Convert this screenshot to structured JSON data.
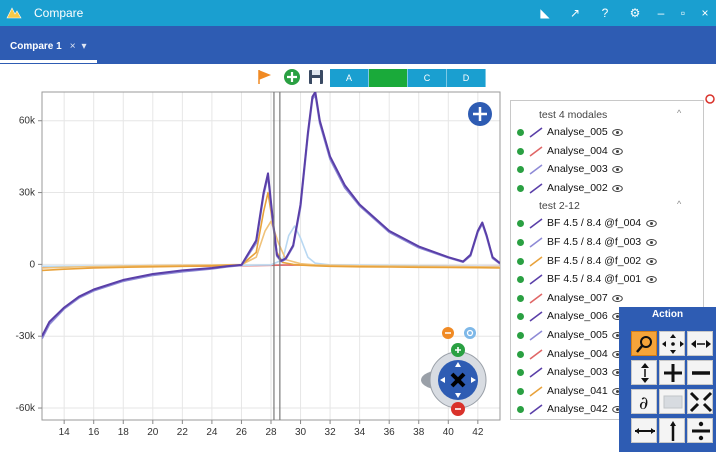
{
  "window": {
    "title": "Compare"
  },
  "tabs": [
    {
      "label": "Compare 1",
      "close": "×",
      "menu": "▾"
    }
  ],
  "titlebar_buttons": [
    "◣",
    "↗",
    "?",
    "⚙",
    "–",
    "▫",
    "×"
  ],
  "toolbar": {
    "segments": [
      {
        "label": "A",
        "active": false
      },
      {
        "label": "",
        "active": true
      },
      {
        "label": "C",
        "active": false
      },
      {
        "label": "D",
        "active": false
      }
    ]
  },
  "chart_data": {
    "type": "line",
    "x_ticks": [
      "14",
      "16",
      "18",
      "20",
      "22",
      "24",
      "26",
      "28",
      "30",
      "32",
      "34",
      "36",
      "38",
      "40",
      "42"
    ],
    "y_ticks": [
      "60k",
      "30k",
      "0",
      "-30k",
      "-60k"
    ],
    "xlim": [
      12.5,
      43.5
    ],
    "ylim": [
      -65000,
      72000
    ],
    "grid": true,
    "series": [
      {
        "color": "#5a3fa8",
        "x": [
          12.5,
          13,
          14,
          15,
          16,
          18,
          20,
          22,
          24,
          25,
          26,
          27,
          27.5,
          27.8,
          28.1,
          28.4,
          28.7,
          29,
          29.5,
          30,
          30.5,
          30.8,
          31,
          31.3,
          32,
          33,
          34,
          36,
          38,
          40,
          41,
          41.5,
          42,
          42.3,
          42.6,
          43,
          43.5
        ],
        "y": [
          -30000,
          -24000,
          -18000,
          -13500,
          -10500,
          -6500,
          -4000,
          -2500,
          -1500,
          -800,
          -200,
          10000,
          30000,
          38000,
          20000,
          4000,
          1500,
          2500,
          8000,
          25000,
          55000,
          70000,
          72000,
          60000,
          45000,
          33000,
          25000,
          14000,
          7500,
          3000,
          1200,
          4000,
          14000,
          17500,
          12000,
          3000,
          500
        ]
      },
      {
        "color": "#8e8ad6",
        "x": [
          12.5,
          13,
          14,
          15,
          16,
          18,
          20,
          22,
          24,
          25,
          26,
          27,
          27.5,
          27.8,
          28.1,
          28.4,
          28.7,
          29,
          29.5,
          30,
          30.5,
          30.8,
          31,
          31.3,
          32,
          33,
          34,
          36,
          38,
          40,
          41,
          41.5,
          42,
          42.3,
          42.6,
          43,
          43.5
        ],
        "y": [
          -31000,
          -25000,
          -18500,
          -14000,
          -11000,
          -7000,
          -4500,
          -3000,
          -1800,
          -1000,
          -400,
          9000,
          29000,
          37000,
          19000,
          3500,
          1200,
          2200,
          7500,
          24000,
          54000,
          69000,
          71000,
          59000,
          44000,
          32000,
          24500,
          13500,
          7000,
          2800,
          1000,
          3600,
          13500,
          17000,
          11500,
          2600,
          300
        ]
      },
      {
        "color": "#e8a23b",
        "x": [
          12.5,
          14,
          16,
          18,
          20,
          22,
          24,
          26,
          27,
          27.5,
          27.8,
          28.1,
          28.4,
          28.8,
          29.5,
          30,
          31,
          32,
          34,
          36,
          38,
          40,
          42,
          43.5
        ],
        "y": [
          -2500,
          -2000,
          -1500,
          -1200,
          -1000,
          -800,
          -600,
          -200,
          5000,
          22000,
          30000,
          18000,
          5000,
          800,
          0,
          -300,
          -600,
          -800,
          -1000,
          -1100,
          -1200,
          -1300,
          -1400,
          -1500
        ]
      },
      {
        "color": "#f0c27a",
        "x": [
          12.5,
          14,
          16,
          18,
          20,
          22,
          24,
          26,
          27,
          27.6,
          28,
          28.5,
          29,
          30,
          31,
          32,
          34,
          36,
          38,
          40,
          42,
          43.5
        ],
        "y": [
          -1500,
          -1200,
          -900,
          -700,
          -500,
          -400,
          -300,
          -100,
          3000,
          14000,
          18000,
          9000,
          2000,
          300,
          -200,
          -400,
          -600,
          -700,
          -800,
          -900,
          -1000,
          -1100
        ]
      },
      {
        "color": "#b9d8f2",
        "x": [
          12.5,
          20,
          26,
          28,
          28.8,
          29.2,
          29.6,
          30,
          30.5,
          31,
          32,
          34,
          36,
          38,
          40,
          42,
          43.5
        ],
        "y": [
          -800,
          -600,
          -400,
          -200,
          2000,
          12000,
          16000,
          11000,
          3000,
          500,
          -200,
          -400,
          -500,
          -600,
          -700,
          -800,
          -900
        ]
      },
      {
        "color": "#e06666",
        "x": [
          12.5,
          18,
          24,
          27,
          28,
          29,
          30,
          31,
          32,
          34,
          38,
          43.5
        ],
        "y": [
          -1000,
          -900,
          -700,
          -500,
          -400,
          -300,
          -300,
          -400,
          -500,
          -600,
          -700,
          -800
        ]
      }
    ],
    "markers": [
      {
        "x": 28.2
      },
      {
        "x": 28.6
      }
    ]
  },
  "legend": {
    "groups": [
      {
        "title": "test 4 modales",
        "collapse": "^",
        "items": [
          {
            "name": "Analyse_005",
            "color": "#5a3fa8"
          },
          {
            "name": "Analyse_004",
            "color": "#e06666"
          },
          {
            "name": "Analyse_003",
            "color": "#8e8ad6"
          },
          {
            "name": "Analyse_002",
            "color": "#5a3fa8"
          }
        ]
      },
      {
        "title": "test 2-12",
        "collapse": "^",
        "items": [
          {
            "name": "BF 4.5 / 8.4 @f_004",
            "color": "#5a3fa8"
          },
          {
            "name": "BF 4.5 / 8.4 @f_003",
            "color": "#8e8ad6"
          },
          {
            "name": "BF 4.5 / 8.4 @f_002",
            "color": "#e8a23b"
          },
          {
            "name": "BF 4.5 / 8.4 @f_001",
            "color": "#5a3fa8"
          },
          {
            "name": "Analyse_007",
            "color": "#e06666"
          },
          {
            "name": "Analyse_006",
            "color": "#5a3fa8"
          },
          {
            "name": "Analyse_005",
            "color": "#8e8ad6"
          },
          {
            "name": "Analyse_004",
            "color": "#e06666"
          },
          {
            "name": "Analyse_003",
            "color": "#5a3fa8"
          },
          {
            "name": "Analyse_041",
            "color": "#e8a23b"
          },
          {
            "name": "Analyse_042",
            "color": "#5a3fa8"
          }
        ]
      }
    ]
  },
  "action_panel": {
    "title": "Action",
    "buttons": [
      {
        "icon": "magnifier-icon",
        "active": true
      },
      {
        "icon": "move-all-icon",
        "active": false
      },
      {
        "icon": "horizontal-arrows-icon",
        "active": false
      },
      {
        "icon": "vertical-arrows-icon",
        "active": false
      },
      {
        "icon": "plus-icon",
        "active": false
      },
      {
        "icon": "minus-icon",
        "active": false
      },
      {
        "icon": "derivative-icon",
        "active": false
      },
      {
        "icon": "area-icon",
        "active": false
      },
      {
        "icon": "shrink-icon",
        "active": false
      },
      {
        "icon": "horizontal-bar-icon",
        "active": false
      },
      {
        "icon": "vertical-bar-icon",
        "active": false
      },
      {
        "icon": "divide-icon",
        "active": false
      }
    ]
  }
}
